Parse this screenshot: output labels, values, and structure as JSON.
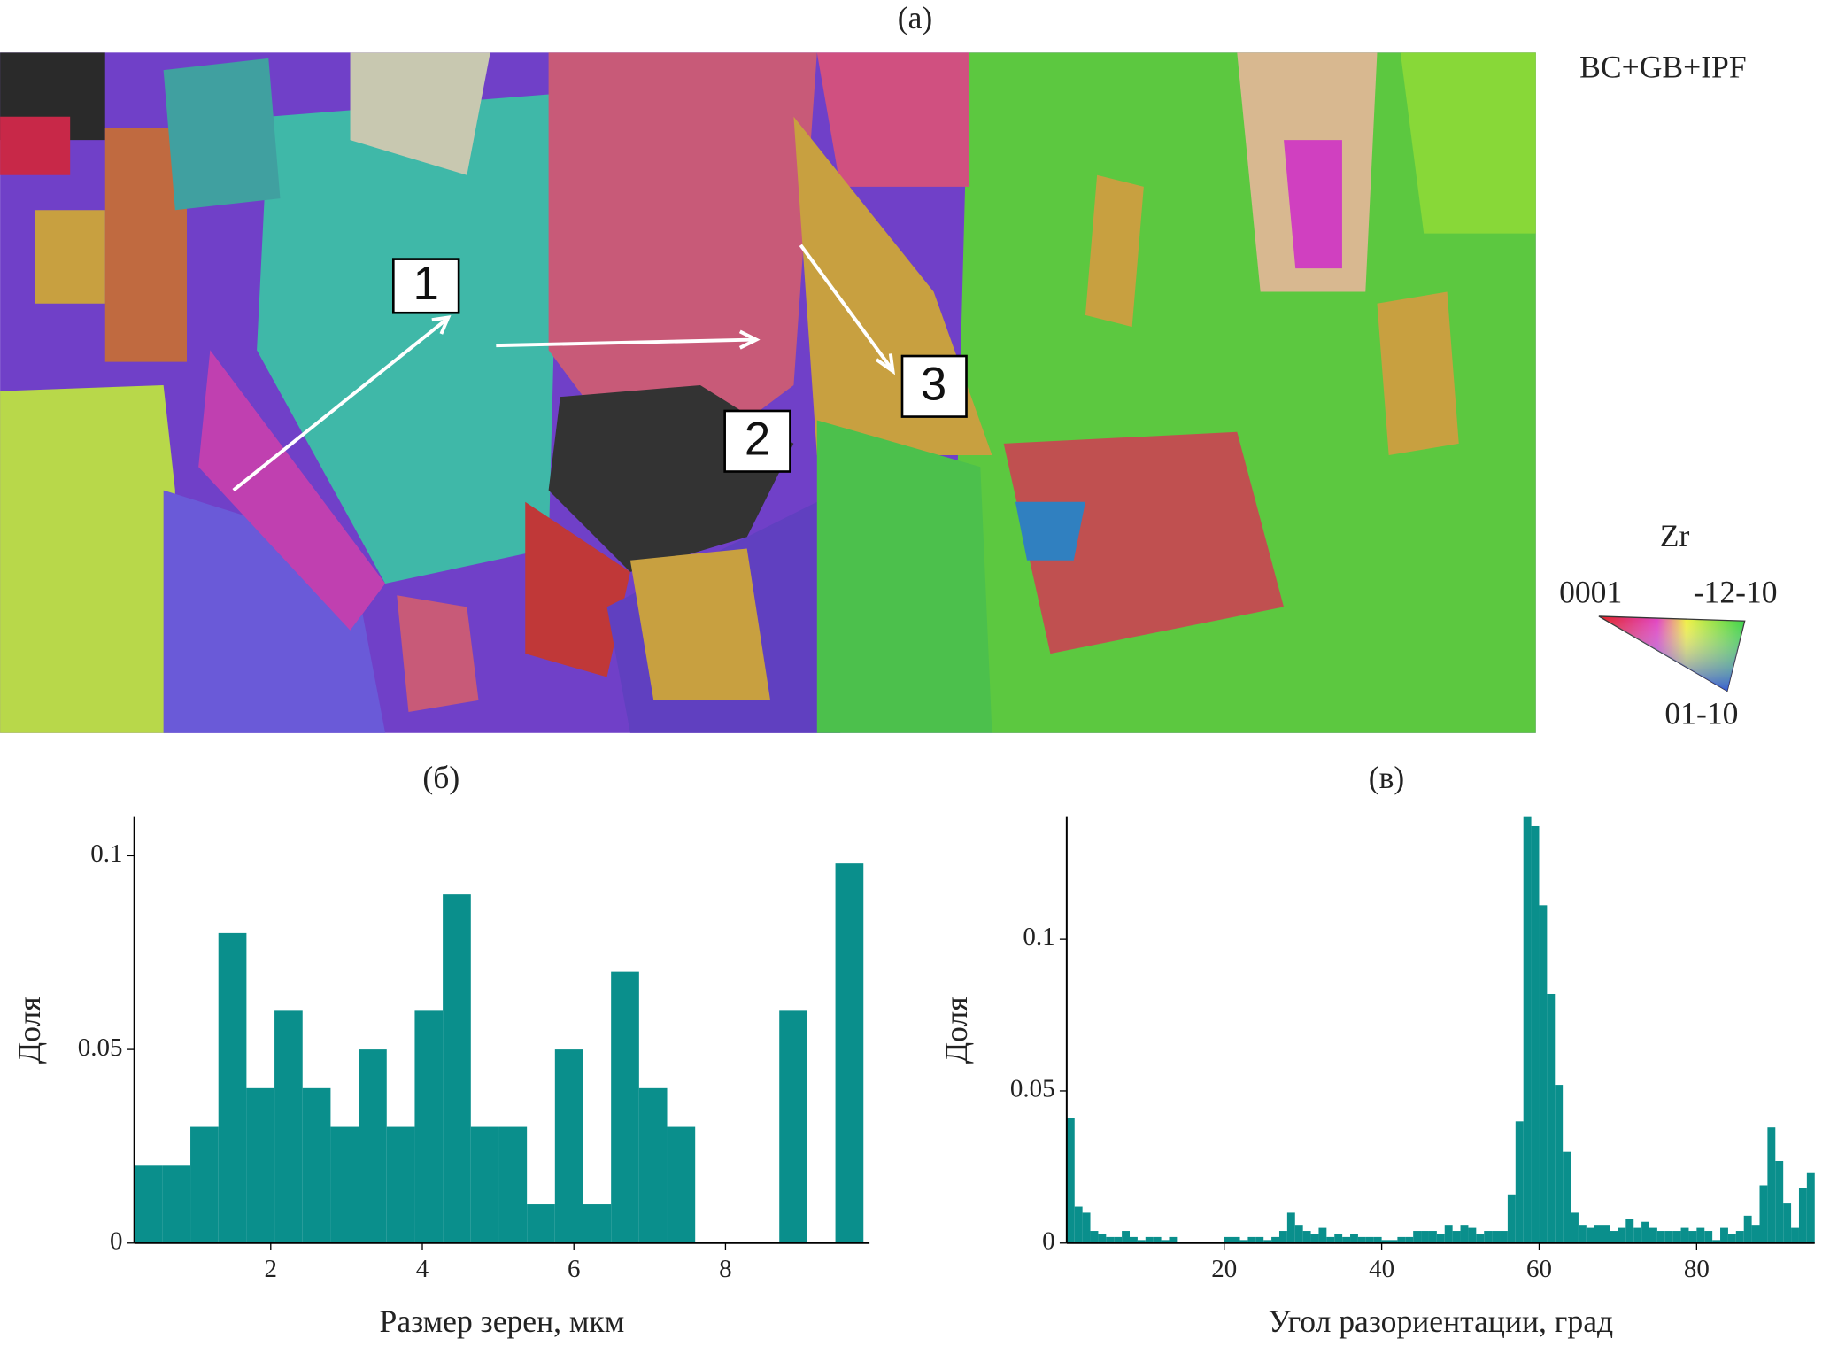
{
  "map": {
    "label": "(а)",
    "caption": "BC+GB+IPF",
    "markers": [
      "1",
      "2",
      "3"
    ],
    "legend": {
      "title": "Zr",
      "corners": [
        "0001",
        "-12-10",
        "01-10"
      ]
    }
  },
  "chart_data": [
    {
      "type": "histogram",
      "title": "(б)",
      "xlabel": "Размер зерен, мкм",
      "ylabel": "Доля",
      "color": "#0a8f8c",
      "bins": [
        0.2,
        0.57,
        0.94,
        1.31,
        1.68,
        2.05,
        2.42,
        2.79,
        3.16,
        3.53,
        3.9,
        4.27,
        4.64,
        5.01,
        5.38,
        5.75,
        6.12,
        6.49,
        6.86,
        7.23,
        7.6,
        7.97,
        8.34,
        8.71,
        9.08,
        9.45,
        9.82
      ],
      "values": [
        0.02,
        0.02,
        0.03,
        0.08,
        0.04,
        0.06,
        0.04,
        0.03,
        0.05,
        0.03,
        0.06,
        0.09,
        0.03,
        0.03,
        0.01,
        0.05,
        0.01,
        0.07,
        0.04,
        0.03,
        0,
        0,
        0,
        0.06,
        0,
        0.098
      ],
      "xlim": [
        0.2,
        9.9
      ],
      "xticks": [
        2,
        4,
        6,
        8
      ],
      "ylim": [
        0,
        0.11
      ],
      "yticks": [
        0,
        0.05,
        0.1
      ]
    },
    {
      "type": "histogram",
      "title": "(в)",
      "xlabel": "Угол разориентации, град",
      "ylabel": "Доля",
      "color": "#0a8f8c",
      "bins": [
        0,
        1,
        2,
        3,
        4,
        5,
        6,
        7,
        8,
        9,
        10,
        11,
        12,
        13,
        14,
        15,
        16,
        17,
        18,
        19,
        20,
        21,
        22,
        23,
        24,
        25,
        26,
        27,
        28,
        29,
        30,
        31,
        32,
        33,
        34,
        35,
        36,
        37,
        38,
        39,
        40,
        41,
        42,
        43,
        44,
        45,
        46,
        47,
        48,
        49,
        50,
        51,
        52,
        53,
        54,
        55,
        56,
        57,
        58,
        59,
        60,
        61,
        62,
        63,
        64,
        65,
        66,
        67,
        68,
        69,
        70,
        71,
        72,
        73,
        74,
        75,
        76,
        77,
        78,
        79,
        80,
        81,
        82,
        83,
        84,
        85,
        86,
        87,
        88,
        89,
        90,
        91,
        92,
        93,
        94,
        95
      ],
      "values": [
        0.041,
        0.012,
        0.01,
        0.004,
        0.003,
        0.002,
        0.002,
        0.004,
        0.002,
        0.001,
        0.002,
        0.002,
        0.001,
        0.002,
        0,
        0,
        0,
        0,
        0,
        0,
        0.002,
        0.002,
        0.001,
        0.002,
        0.002,
        0.001,
        0.002,
        0.004,
        0.01,
        0.006,
        0.004,
        0.003,
        0.005,
        0.002,
        0.003,
        0.002,
        0.003,
        0.002,
        0.002,
        0.002,
        0.001,
        0.001,
        0.002,
        0.002,
        0.004,
        0.004,
        0.004,
        0.003,
        0.006,
        0.004,
        0.006,
        0.005,
        0.003,
        0.004,
        0.004,
        0.004,
        0.016,
        0.04,
        0.14,
        0.137,
        0.111,
        0.082,
        0.052,
        0.03,
        0.01,
        0.006,
        0.005,
        0.006,
        0.006,
        0.004,
        0.005,
        0.008,
        0.005,
        0.007,
        0.005,
        0.004,
        0.004,
        0.004,
        0.005,
        0.004,
        0.005,
        0.004,
        0.001,
        0.005,
        0.003,
        0.004,
        0.009,
        0.006,
        0.019,
        0.038,
        0.027,
        0.013,
        0.005,
        0.018,
        0.023
      ],
      "xlim": [
        0,
        95
      ],
      "xticks": [
        20,
        40,
        60,
        80
      ],
      "ylim": [
        0,
        0.14
      ],
      "yticks": [
        0,
        0.05,
        0.1
      ]
    }
  ]
}
